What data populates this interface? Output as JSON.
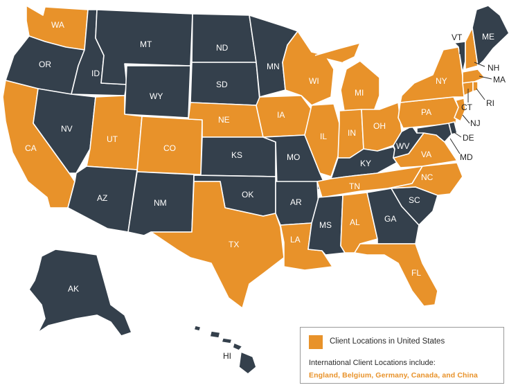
{
  "colors": {
    "client": "#e8922a",
    "other": "#34404c",
    "border": "#ffffff"
  },
  "states": {
    "WA": {
      "label": "WA",
      "client": true
    },
    "OR": {
      "label": "OR",
      "client": false
    },
    "CA": {
      "label": "CA",
      "client": true
    },
    "ID": {
      "label": "ID",
      "client": false
    },
    "NV": {
      "label": "NV",
      "client": false
    },
    "MT": {
      "label": "MT",
      "client": false
    },
    "WY": {
      "label": "WY",
      "client": false
    },
    "UT": {
      "label": "UT",
      "client": true
    },
    "AZ": {
      "label": "AZ",
      "client": false
    },
    "CO": {
      "label": "CO",
      "client": true
    },
    "NM": {
      "label": "NM",
      "client": false
    },
    "ND": {
      "label": "ND",
      "client": false
    },
    "SD": {
      "label": "SD",
      "client": false
    },
    "NE": {
      "label": "NE",
      "client": true
    },
    "KS": {
      "label": "KS",
      "client": false
    },
    "OK": {
      "label": "OK",
      "client": false
    },
    "TX": {
      "label": "TX",
      "client": true
    },
    "MN": {
      "label": "MN",
      "client": false
    },
    "IA": {
      "label": "IA",
      "client": true
    },
    "MO": {
      "label": "MO",
      "client": false
    },
    "AR": {
      "label": "AR",
      "client": false
    },
    "LA": {
      "label": "LA",
      "client": true
    },
    "WI": {
      "label": "WI",
      "client": true
    },
    "IL": {
      "label": "IL",
      "client": true
    },
    "MI": {
      "label": "MI",
      "client": true
    },
    "IN": {
      "label": "IN",
      "client": true
    },
    "OH": {
      "label": "OH",
      "client": true
    },
    "KY": {
      "label": "KY",
      "client": false
    },
    "TN": {
      "label": "TN",
      "client": true
    },
    "MS": {
      "label": "MS",
      "client": false
    },
    "AL": {
      "label": "AL",
      "client": true
    },
    "GA": {
      "label": "GA",
      "client": false
    },
    "FL": {
      "label": "FL",
      "client": true
    },
    "SC": {
      "label": "SC",
      "client": false
    },
    "NC": {
      "label": "NC",
      "client": true
    },
    "VA": {
      "label": "VA",
      "client": true
    },
    "WV": {
      "label": "WV",
      "client": false
    },
    "PA": {
      "label": "PA",
      "client": true
    },
    "NY": {
      "label": "NY",
      "client": true
    },
    "VT": {
      "label": "VT",
      "client": false
    },
    "NH": {
      "label": "NH",
      "client": true
    },
    "ME": {
      "label": "ME",
      "client": false
    },
    "MA": {
      "label": "MA",
      "client": true
    },
    "RI": {
      "label": "RI",
      "client": true
    },
    "CT": {
      "label": "CT",
      "client": true
    },
    "NJ": {
      "label": "NJ",
      "client": true
    },
    "DE": {
      "label": "DE",
      "client": false
    },
    "MD": {
      "label": "MD",
      "client": false
    },
    "AK": {
      "label": "AK",
      "client": false
    },
    "HI": {
      "label": "HI",
      "client": false
    }
  },
  "legend": {
    "client_label": "Client Locations in United States",
    "international_label": "International Client Locations include:",
    "international_countries": "England, Belgium, Germany, Canada, and China"
  }
}
